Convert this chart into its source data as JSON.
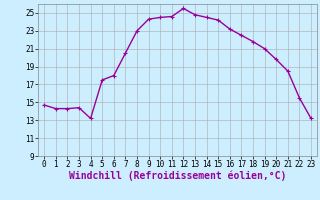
{
  "x": [
    0,
    1,
    2,
    3,
    4,
    5,
    6,
    7,
    8,
    9,
    10,
    11,
    12,
    13,
    14,
    15,
    16,
    17,
    18,
    19,
    20,
    21,
    22,
    23
  ],
  "y": [
    14.7,
    14.3,
    14.3,
    14.4,
    13.2,
    17.5,
    18.0,
    20.5,
    23.0,
    24.3,
    24.5,
    24.6,
    25.5,
    24.8,
    24.5,
    24.2,
    23.2,
    22.5,
    21.8,
    21.0,
    19.8,
    18.5,
    15.5,
    13.2
  ],
  "line_color": "#990099",
  "marker_color": "#990099",
  "markersize": 3,
  "linewidth": 1.0,
  "background_color": "#cceeff",
  "grid_color": "#aaaaaa",
  "xlabel": "Windchill (Refroidissement éolien,°C)",
  "xlabel_color": "#990099",
  "xlabel_fontsize": 7,
  "xlim": [
    -0.5,
    23.5
  ],
  "ylim": [
    9,
    26
  ],
  "yticks": [
    9,
    11,
    13,
    15,
    17,
    19,
    21,
    23,
    25
  ],
  "xticks": [
    0,
    1,
    2,
    3,
    4,
    5,
    6,
    7,
    8,
    9,
    10,
    11,
    12,
    13,
    14,
    15,
    16,
    17,
    18,
    19,
    20,
    21,
    22,
    23
  ],
  "tick_fontsize": 5.5
}
